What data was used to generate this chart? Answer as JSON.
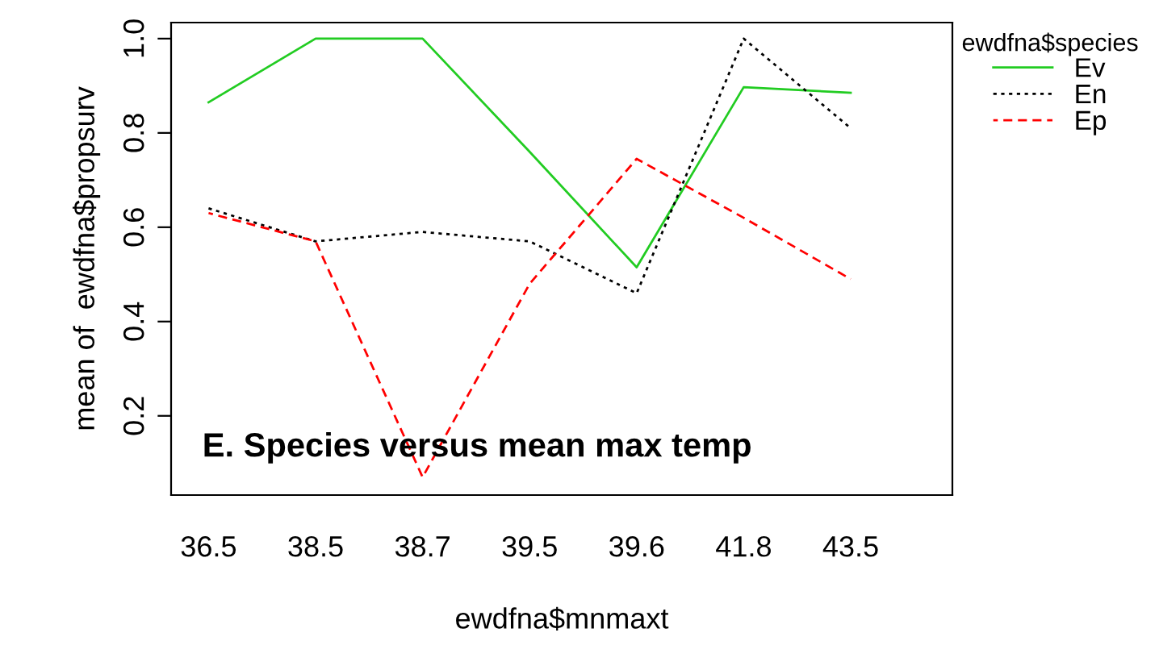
{
  "chart_data": {
    "type": "line",
    "title": "E. Species versus mean max temp",
    "xlabel": "ewdfna$mnmaxt",
    "ylabel": "mean of  ewdfna$propsurv",
    "legend_title": "ewdfna$species",
    "categories": [
      "36.5",
      "38.5",
      "38.7",
      "39.5",
      "39.6",
      "41.8",
      "43.5"
    ],
    "series": [
      {
        "name": "Ev",
        "color": "#22cc22",
        "line_style": "solid",
        "values": [
          0.865,
          1.0,
          1.0,
          0.76,
          0.515,
          0.897,
          0.885
        ]
      },
      {
        "name": "En",
        "color": "#000000",
        "line_style": "dotted",
        "values": [
          0.64,
          0.57,
          0.59,
          0.57,
          0.46,
          1.0,
          0.81
        ]
      },
      {
        "name": "Ep",
        "color": "#ff0000",
        "line_style": "dashed",
        "values": [
          0.63,
          0.57,
          0.07,
          0.48,
          0.745,
          0.62,
          0.49
        ]
      }
    ],
    "ylim": [
      0.032,
      1.034
    ],
    "yticks": [
      0.2,
      0.4,
      0.6,
      0.8,
      {
        "value": 1.0,
        "label": "1.0"
      }
    ],
    "grid": false,
    "legend": "top right"
  }
}
